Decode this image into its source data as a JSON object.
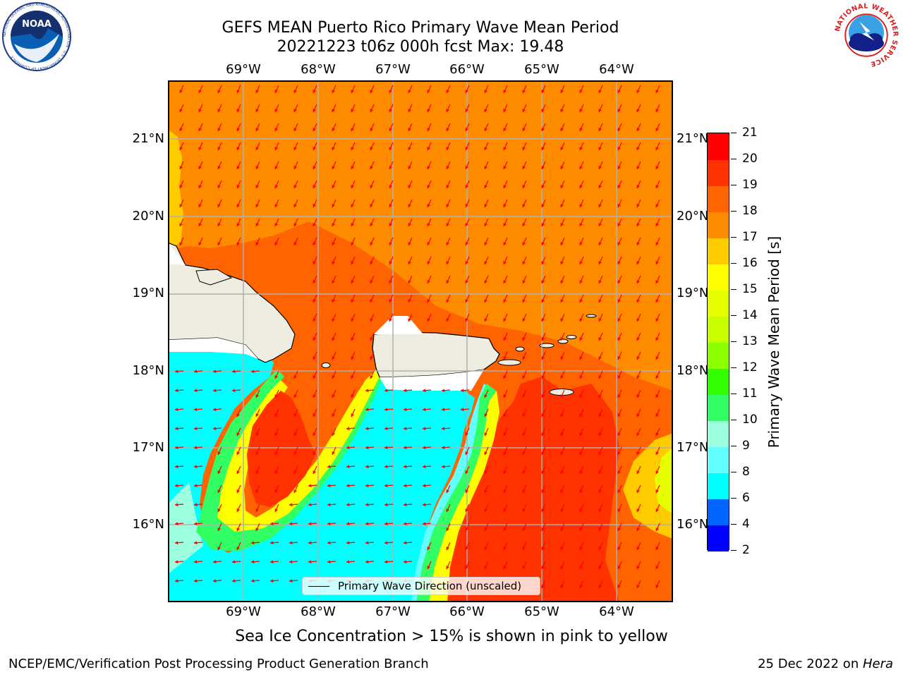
{
  "header": {
    "title_line1": "GEFS MEAN Puerto Rico Primary Wave Mean Period",
    "title_line2": "20221223 t06z 000h fcst   Max: 19.48"
  },
  "logos": {
    "left": {
      "text": "NOAA",
      "icon": "noaa-logo-icon",
      "ring_text": "NATIONAL OCEANIC AND ATMOSPHERIC ADMINISTRATION · U.S. DEPARTMENT OF COMMERCE"
    },
    "right": {
      "icon": "nws-logo-icon",
      "ring_text": "NATIONAL WEATHER SERVICE"
    }
  },
  "map": {
    "lon_labels": [
      "69°W",
      "68°W",
      "67°W",
      "66°W",
      "65°W",
      "64°W"
    ],
    "lat_labels": [
      "21°N",
      "20°N",
      "19°N",
      "18°N",
      "17°N",
      "16°N"
    ],
    "colors": {
      "ocean_field": "#ff8c00",
      "land": "#efede0",
      "arrow": "#ff0000"
    }
  },
  "colorbar": {
    "label": "Primary Wave Mean Period [s]",
    "ticks": [
      "2",
      "4",
      "6",
      "8",
      "9",
      "10",
      "11",
      "12",
      "13",
      "14",
      "15",
      "16",
      "17",
      "18",
      "19",
      "20",
      "21"
    ],
    "colors": [
      "#0000ff",
      "#0064ff",
      "#00ffff",
      "#64ffff",
      "#9dffdf",
      "#32ff64",
      "#32ff00",
      "#8cff00",
      "#c8ff00",
      "#e6ff00",
      "#ffff00",
      "#ffcc00",
      "#ff8c00",
      "#ff6400",
      "#ff3200",
      "#ff0000"
    ]
  },
  "legend": {
    "label": "Primary Wave Direction (unscaled)"
  },
  "caption": "Sea Ice Concentration > 15% is shown in pink to yellow",
  "footer": {
    "left": "NCEP/EMC/Verification Post Processing Product Generation Branch",
    "right_prefix": "25 Dec 2022 on ",
    "right_host": "Hera"
  }
}
